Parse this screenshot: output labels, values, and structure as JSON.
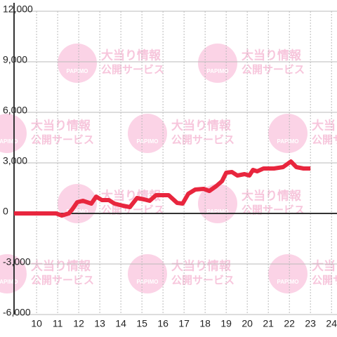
{
  "chart_data": {
    "type": "line",
    "watermark": {
      "logo": "PAPIMO",
      "line1": "大当り情報",
      "line2": "公開サービス"
    },
    "xlim": [
      8.93,
      24.26
    ],
    "ylim": [
      -6000,
      12000
    ],
    "xticks": [
      10,
      11,
      12,
      13,
      14,
      15,
      16,
      17,
      18,
      19,
      20,
      21,
      22,
      23,
      24
    ],
    "yticks": [
      {
        "value": -6000,
        "label": "-6,000"
      },
      {
        "value": -3000,
        "label": "-3,000"
      },
      0,
      {
        "value": 3000,
        "label": "3,000"
      },
      {
        "value": 6000,
        "label": "6,000"
      },
      {
        "value": 9000,
        "label": "9,000"
      },
      {
        "value": 12000,
        "label": "12,000"
      }
    ],
    "grid": true,
    "series": [
      {
        "color": "#e8263e",
        "x": [
          8.93,
          10.93,
          11.2,
          11.53,
          11.7,
          11.93,
          12.2,
          12.6,
          12.83,
          13.1,
          13.43,
          13.7,
          14.1,
          14.43,
          14.77,
          15.1,
          15.37,
          15.67,
          16.27,
          16.67,
          16.93,
          17.2,
          17.53,
          17.93,
          18.2,
          18.53,
          18.8,
          19,
          19.27,
          19.53,
          19.87,
          20.1,
          20.27,
          20.47,
          20.77,
          21.27,
          21.7,
          22.07,
          22.33,
          22.67,
          23
        ],
        "values": [
          0,
          0,
          -125,
          0,
          250,
          667,
          750,
          583,
          1000,
          792,
          792,
          583,
          458,
          375,
          917,
          833,
          750,
          1083,
          1083,
          625,
          583,
          1167,
          1417,
          1458,
          1333,
          1625,
          1917,
          2417,
          2458,
          2250,
          2333,
          2250,
          2583,
          2500,
          2667,
          2667,
          2750,
          3083,
          2750,
          2667,
          2667
        ]
      }
    ]
  }
}
